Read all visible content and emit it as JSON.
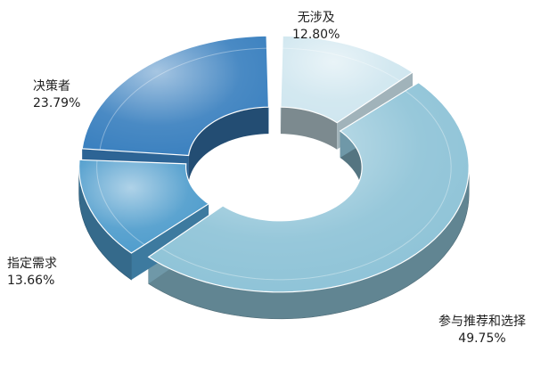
{
  "chart_data": {
    "type": "pie",
    "style": "3d-donut",
    "slices": [
      {
        "label": "无涉及",
        "value": 12.8,
        "value_text": "12.80%",
        "color": "#cfe6ef"
      },
      {
        "label": "参与推荐和选择",
        "value": 49.75,
        "value_text": "49.75%",
        "color": "#8ec3d7"
      },
      {
        "label": "指定需求",
        "value": 13.66,
        "value_text": "13.66%",
        "color": "#4e9ccc"
      },
      {
        "label": "决策者",
        "value": 23.79,
        "value_text": "23.79%",
        "color": "#3a80bf"
      }
    ]
  }
}
